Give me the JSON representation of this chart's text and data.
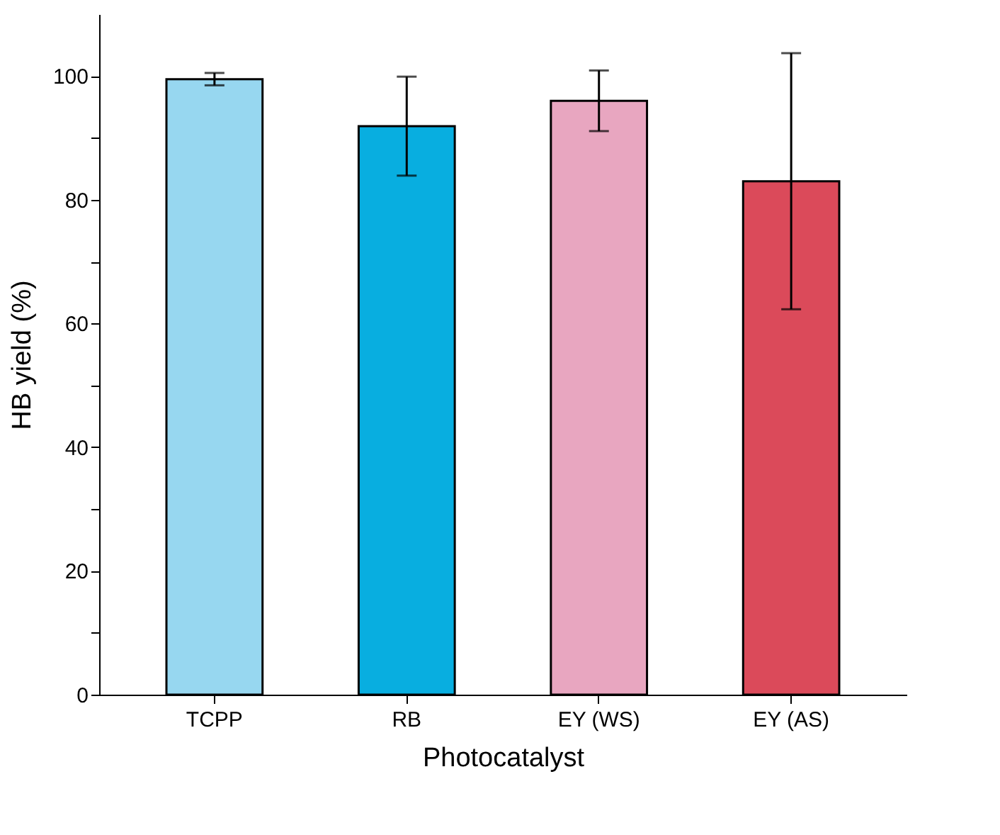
{
  "chart_data": {
    "type": "bar",
    "categories": [
      "TCPP",
      "RB",
      "EY (WS)",
      "EY (AS)"
    ],
    "values": [
      99.5,
      91.9,
      96,
      83
    ],
    "errors": [
      1,
      8,
      4.9,
      20.7
    ],
    "colors": [
      "#97d7f0",
      "#08aee0",
      "#e8a6c0",
      "#db4a5a"
    ],
    "xlabel": "Photocatalyst",
    "ylabel": "HB yield (%)",
    "ylim": [
      0,
      110
    ],
    "yticks": [
      0,
      {
        "value": 10,
        "label": null
      },
      20,
      {
        "value": 30,
        "label": null
      },
      40,
      {
        "value": 50,
        "label": null
      },
      60,
      {
        "value": 70,
        "label": null
      },
      80,
      {
        "value": 90,
        "label": null
      },
      100
    ],
    "grid": false
  }
}
